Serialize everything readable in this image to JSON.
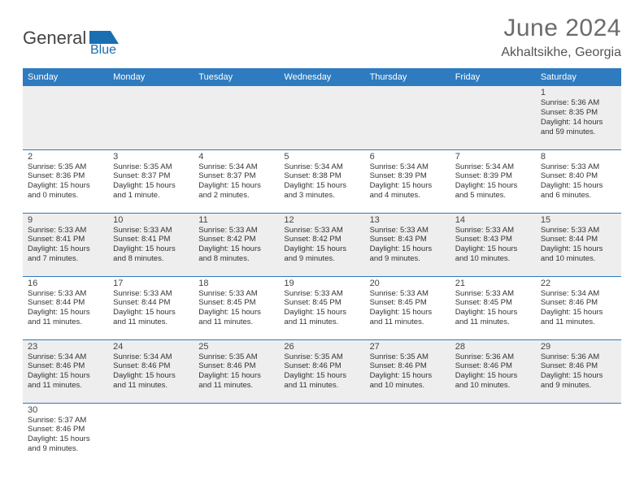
{
  "brand": {
    "name1": "General",
    "name2": "Blue"
  },
  "title": "June 2024",
  "location": "Akhaltsikhe, Georgia",
  "colors": {
    "header_bar": "#2e7bbf",
    "row_alt": "#eeeeee",
    "title_text": "#6b6b6b",
    "logo_text": "#444444",
    "logo_accent": "#1a6fb0"
  },
  "weekdays": [
    "Sunday",
    "Monday",
    "Tuesday",
    "Wednesday",
    "Thursday",
    "Friday",
    "Saturday"
  ],
  "weeks": [
    {
      "row": "odd",
      "days": [
        null,
        null,
        null,
        null,
        null,
        null,
        {
          "n": "1",
          "sr": "Sunrise: 5:36 AM",
          "ss": "Sunset: 8:35 PM",
          "dl1": "Daylight: 14 hours",
          "dl2": "and 59 minutes."
        }
      ]
    },
    {
      "row": "even",
      "days": [
        {
          "n": "2",
          "sr": "Sunrise: 5:35 AM",
          "ss": "Sunset: 8:36 PM",
          "dl1": "Daylight: 15 hours",
          "dl2": "and 0 minutes."
        },
        {
          "n": "3",
          "sr": "Sunrise: 5:35 AM",
          "ss": "Sunset: 8:37 PM",
          "dl1": "Daylight: 15 hours",
          "dl2": "and 1 minute."
        },
        {
          "n": "4",
          "sr": "Sunrise: 5:34 AM",
          "ss": "Sunset: 8:37 PM",
          "dl1": "Daylight: 15 hours",
          "dl2": "and 2 minutes."
        },
        {
          "n": "5",
          "sr": "Sunrise: 5:34 AM",
          "ss": "Sunset: 8:38 PM",
          "dl1": "Daylight: 15 hours",
          "dl2": "and 3 minutes."
        },
        {
          "n": "6",
          "sr": "Sunrise: 5:34 AM",
          "ss": "Sunset: 8:39 PM",
          "dl1": "Daylight: 15 hours",
          "dl2": "and 4 minutes."
        },
        {
          "n": "7",
          "sr": "Sunrise: 5:34 AM",
          "ss": "Sunset: 8:39 PM",
          "dl1": "Daylight: 15 hours",
          "dl2": "and 5 minutes."
        },
        {
          "n": "8",
          "sr": "Sunrise: 5:33 AM",
          "ss": "Sunset: 8:40 PM",
          "dl1": "Daylight: 15 hours",
          "dl2": "and 6 minutes."
        }
      ]
    },
    {
      "row": "odd",
      "days": [
        {
          "n": "9",
          "sr": "Sunrise: 5:33 AM",
          "ss": "Sunset: 8:41 PM",
          "dl1": "Daylight: 15 hours",
          "dl2": "and 7 minutes."
        },
        {
          "n": "10",
          "sr": "Sunrise: 5:33 AM",
          "ss": "Sunset: 8:41 PM",
          "dl1": "Daylight: 15 hours",
          "dl2": "and 8 minutes."
        },
        {
          "n": "11",
          "sr": "Sunrise: 5:33 AM",
          "ss": "Sunset: 8:42 PM",
          "dl1": "Daylight: 15 hours",
          "dl2": "and 8 minutes."
        },
        {
          "n": "12",
          "sr": "Sunrise: 5:33 AM",
          "ss": "Sunset: 8:42 PM",
          "dl1": "Daylight: 15 hours",
          "dl2": "and 9 minutes."
        },
        {
          "n": "13",
          "sr": "Sunrise: 5:33 AM",
          "ss": "Sunset: 8:43 PM",
          "dl1": "Daylight: 15 hours",
          "dl2": "and 9 minutes."
        },
        {
          "n": "14",
          "sr": "Sunrise: 5:33 AM",
          "ss": "Sunset: 8:43 PM",
          "dl1": "Daylight: 15 hours",
          "dl2": "and 10 minutes."
        },
        {
          "n": "15",
          "sr": "Sunrise: 5:33 AM",
          "ss": "Sunset: 8:44 PM",
          "dl1": "Daylight: 15 hours",
          "dl2": "and 10 minutes."
        }
      ]
    },
    {
      "row": "even",
      "days": [
        {
          "n": "16",
          "sr": "Sunrise: 5:33 AM",
          "ss": "Sunset: 8:44 PM",
          "dl1": "Daylight: 15 hours",
          "dl2": "and 11 minutes."
        },
        {
          "n": "17",
          "sr": "Sunrise: 5:33 AM",
          "ss": "Sunset: 8:44 PM",
          "dl1": "Daylight: 15 hours",
          "dl2": "and 11 minutes."
        },
        {
          "n": "18",
          "sr": "Sunrise: 5:33 AM",
          "ss": "Sunset: 8:45 PM",
          "dl1": "Daylight: 15 hours",
          "dl2": "and 11 minutes."
        },
        {
          "n": "19",
          "sr": "Sunrise: 5:33 AM",
          "ss": "Sunset: 8:45 PM",
          "dl1": "Daylight: 15 hours",
          "dl2": "and 11 minutes."
        },
        {
          "n": "20",
          "sr": "Sunrise: 5:33 AM",
          "ss": "Sunset: 8:45 PM",
          "dl1": "Daylight: 15 hours",
          "dl2": "and 11 minutes."
        },
        {
          "n": "21",
          "sr": "Sunrise: 5:33 AM",
          "ss": "Sunset: 8:45 PM",
          "dl1": "Daylight: 15 hours",
          "dl2": "and 11 minutes."
        },
        {
          "n": "22",
          "sr": "Sunrise: 5:34 AM",
          "ss": "Sunset: 8:46 PM",
          "dl1": "Daylight: 15 hours",
          "dl2": "and 11 minutes."
        }
      ]
    },
    {
      "row": "odd",
      "days": [
        {
          "n": "23",
          "sr": "Sunrise: 5:34 AM",
          "ss": "Sunset: 8:46 PM",
          "dl1": "Daylight: 15 hours",
          "dl2": "and 11 minutes."
        },
        {
          "n": "24",
          "sr": "Sunrise: 5:34 AM",
          "ss": "Sunset: 8:46 PM",
          "dl1": "Daylight: 15 hours",
          "dl2": "and 11 minutes."
        },
        {
          "n": "25",
          "sr": "Sunrise: 5:35 AM",
          "ss": "Sunset: 8:46 PM",
          "dl1": "Daylight: 15 hours",
          "dl2": "and 11 minutes."
        },
        {
          "n": "26",
          "sr": "Sunrise: 5:35 AM",
          "ss": "Sunset: 8:46 PM",
          "dl1": "Daylight: 15 hours",
          "dl2": "and 11 minutes."
        },
        {
          "n": "27",
          "sr": "Sunrise: 5:35 AM",
          "ss": "Sunset: 8:46 PM",
          "dl1": "Daylight: 15 hours",
          "dl2": "and 10 minutes."
        },
        {
          "n": "28",
          "sr": "Sunrise: 5:36 AM",
          "ss": "Sunset: 8:46 PM",
          "dl1": "Daylight: 15 hours",
          "dl2": "and 10 minutes."
        },
        {
          "n": "29",
          "sr": "Sunrise: 5:36 AM",
          "ss": "Sunset: 8:46 PM",
          "dl1": "Daylight: 15 hours",
          "dl2": "and 9 minutes."
        }
      ]
    },
    {
      "row": "even",
      "days": [
        {
          "n": "30",
          "sr": "Sunrise: 5:37 AM",
          "ss": "Sunset: 8:46 PM",
          "dl1": "Daylight: 15 hours",
          "dl2": "and 9 minutes."
        },
        null,
        null,
        null,
        null,
        null,
        null
      ]
    }
  ]
}
